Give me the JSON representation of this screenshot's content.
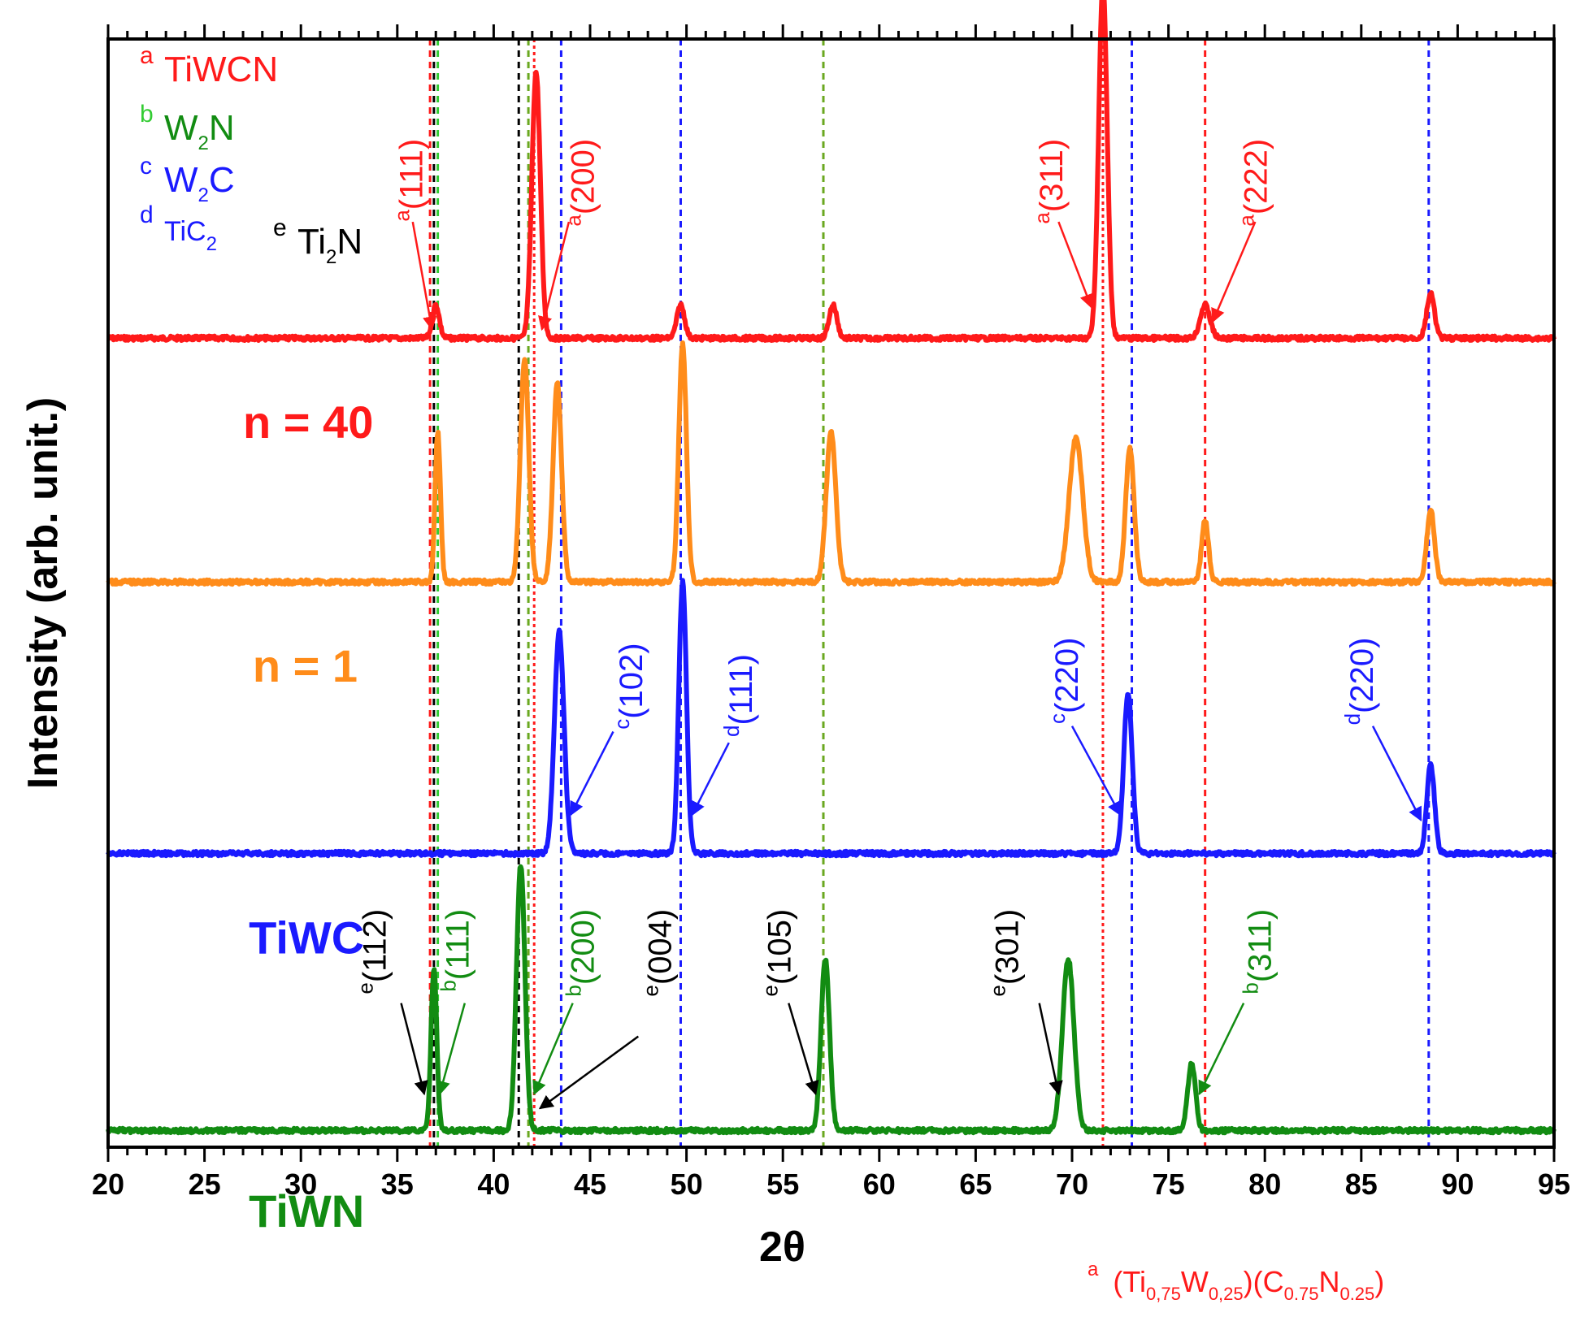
{
  "chart_data": {
    "type": "line",
    "title": "",
    "xlabel": "2θ",
    "ylabel": "Intensity  (arb. unit.)",
    "xlim": [
      20,
      95
    ],
    "xticks": [
      "20",
      "25",
      "30",
      "35",
      "40",
      "45",
      "50",
      "55",
      "60",
      "65",
      "70",
      "75",
      "80",
      "85",
      "90",
      "95"
    ],
    "footnote": {
      "sup": "a",
      "text_parts": [
        "(Ti",
        "0,75",
        "W",
        "0,25",
        ")(C",
        "0.75",
        "N",
        "0.25",
        ")"
      ]
    },
    "legend": [
      {
        "sup": "a",
        "name": "TiWCN",
        "sub": "",
        "color": "#ff1a1a",
        "sup_color": "#ff1a1a"
      },
      {
        "sup": "b",
        "name": "W",
        "sub": "2",
        "name2": "N",
        "color": "#128c12",
        "sup_color": "#33cc33"
      },
      {
        "sup": "c",
        "name": "W",
        "sub": "2",
        "name2": "C",
        "color": "#1a1aff",
        "sup_color": "#1a1aff"
      },
      {
        "sup": "d",
        "name": "TiC",
        "sub": "2",
        "name2": "",
        "color": "#1a1aff",
        "sup_color": "#1a1aff"
      },
      {
        "sup": "e",
        "name": "Ti",
        "sub": "2",
        "name2": "N",
        "color": "#000000",
        "sup_color": "#000000"
      }
    ],
    "reference_lines": [
      {
        "x": 36.7,
        "color": "#ff1a1a",
        "dash": "8,6"
      },
      {
        "x": 36.9,
        "color": "#000000",
        "dash": "8,6"
      },
      {
        "x": 37.1,
        "color": "#33cc33",
        "dash": "8,6"
      },
      {
        "x": 41.3,
        "color": "#000000",
        "dash": "8,6"
      },
      {
        "x": 41.8,
        "color": "#6aa820",
        "dash": "8,6"
      },
      {
        "x": 42.1,
        "color": "#ff1a1a",
        "dash": "4,4"
      },
      {
        "x": 43.5,
        "color": "#1a1aff",
        "dash": "8,6"
      },
      {
        "x": 49.7,
        "color": "#1a1aff",
        "dash": "8,6"
      },
      {
        "x": 57.1,
        "color": "#6aa820",
        "dash": "8,6"
      },
      {
        "x": 71.6,
        "color": "#ff1a1a",
        "dash": "4,4"
      },
      {
        "x": 73.1,
        "color": "#1a1aff",
        "dash": "8,6"
      },
      {
        "x": 76.9,
        "color": "#ff1a1a",
        "dash": "8,6"
      },
      {
        "x": 88.5,
        "color": "#1a1aff",
        "dash": "8,6"
      }
    ],
    "series": [
      {
        "name": "n = 40",
        "color": "#ff1a1a",
        "baseline": 0.27,
        "label_x": 27.0,
        "label_y": 0.36,
        "peaks": [
          {
            "x": 37.0,
            "h": 0.03,
            "w": 0.18
          },
          {
            "x": 42.2,
            "h": 0.24,
            "w": 0.22
          },
          {
            "x": 49.7,
            "h": 0.03,
            "w": 0.2
          },
          {
            "x": 57.6,
            "h": 0.03,
            "w": 0.2
          },
          {
            "x": 71.6,
            "h": 0.32,
            "w": 0.22
          },
          {
            "x": 76.9,
            "h": 0.03,
            "w": 0.25
          },
          {
            "x": 88.6,
            "h": 0.04,
            "w": 0.2
          }
        ]
      },
      {
        "name": "n = 1",
        "color": "#ff8c1a",
        "baseline": 0.49,
        "label_x": 27.5,
        "label_y": 0.58,
        "peaks": [
          {
            "x": 37.1,
            "h": 0.135,
            "w": 0.14
          },
          {
            "x": 41.6,
            "h": 0.2,
            "w": 0.22
          },
          {
            "x": 43.3,
            "h": 0.18,
            "w": 0.22
          },
          {
            "x": 49.8,
            "h": 0.215,
            "w": 0.2
          },
          {
            "x": 57.5,
            "h": 0.135,
            "w": 0.25
          },
          {
            "x": 70.2,
            "h": 0.13,
            "w": 0.35
          },
          {
            "x": 73.0,
            "h": 0.12,
            "w": 0.22
          },
          {
            "x": 76.9,
            "h": 0.055,
            "w": 0.18
          },
          {
            "x": 88.6,
            "h": 0.065,
            "w": 0.2
          }
        ]
      },
      {
        "name": "TiWC",
        "color": "#1a1aff",
        "baseline": 0.735,
        "label_x": 27.3,
        "label_y": 0.825,
        "peaks": [
          {
            "x": 43.4,
            "h": 0.2,
            "w": 0.25
          },
          {
            "x": 49.8,
            "h": 0.245,
            "w": 0.2
          },
          {
            "x": 72.9,
            "h": 0.145,
            "w": 0.22
          },
          {
            "x": 88.6,
            "h": 0.08,
            "w": 0.2
          }
        ]
      },
      {
        "name": "TiWN",
        "color": "#128c12",
        "baseline": 0.985,
        "label_x": 27.3,
        "label_y": 1.072,
        "peaks": [
          {
            "x": 36.9,
            "h": 0.145,
            "w": 0.15
          },
          {
            "x": 41.4,
            "h": 0.24,
            "w": 0.22
          },
          {
            "x": 57.2,
            "h": 0.155,
            "w": 0.22
          },
          {
            "x": 69.8,
            "h": 0.155,
            "w": 0.3
          },
          {
            "x": 76.2,
            "h": 0.06,
            "w": 0.2
          }
        ]
      }
    ],
    "annotations": [
      {
        "sup": "a",
        "label": "(111)",
        "color": "#ff1a1a",
        "tx": 36.3,
        "ty": 0.09,
        "ax1": 35.8,
        "ay1": 0.165,
        "ax2": 36.8,
        "ay2": 0.262
      },
      {
        "sup": "a",
        "label": "(200)",
        "color": "#ff1a1a",
        "tx": 45.2,
        "ty": 0.09,
        "ax1": 43.9,
        "ay1": 0.165,
        "ax2": 42.5,
        "ay2": 0.262
      },
      {
        "sup": "a",
        "label": "(311)",
        "color": "#ff1a1a",
        "tx": 69.5,
        "ty": 0.09,
        "ax1": 69.3,
        "ay1": 0.165,
        "ax2": 71.0,
        "ay2": 0.242
      },
      {
        "sup": "a",
        "label": "(222)",
        "color": "#ff1a1a",
        "tx": 80.1,
        "ty": 0.09,
        "ax1": 79.5,
        "ay1": 0.165,
        "ax2": 77.3,
        "ay2": 0.255
      },
      {
        "sup": "c",
        "label": "(102)",
        "color": "#1a1aff",
        "tx": 47.7,
        "ty": 0.545,
        "ax1": 46.2,
        "ay1": 0.625,
        "ax2": 44.0,
        "ay2": 0.7
      },
      {
        "sup": "d",
        "label": "(111)",
        "color": "#1a1aff",
        "tx": 53.4,
        "ty": 0.555,
        "ax1": 52.2,
        "ay1": 0.635,
        "ax2": 50.3,
        "ay2": 0.7
      },
      {
        "sup": "c",
        "label": "(220)",
        "color": "#1a1aff",
        "tx": 70.3,
        "ty": 0.54,
        "ax1": 70.0,
        "ay1": 0.62,
        "ax2": 72.5,
        "ay2": 0.7
      },
      {
        "sup": "d",
        "label": "(220)",
        "color": "#1a1aff",
        "tx": 85.6,
        "ty": 0.54,
        "ax1": 85.6,
        "ay1": 0.62,
        "ax2": 88.1,
        "ay2": 0.705
      },
      {
        "sup": "e",
        "label": "(112)",
        "color": "#000000",
        "tx": 34.4,
        "ty": 0.785,
        "ax1": 35.2,
        "ay1": 0.87,
        "ax2": 36.4,
        "ay2": 0.952
      },
      {
        "sup": "b",
        "label": "(111)",
        "color": "#128c12",
        "tx": 38.7,
        "ty": 0.785,
        "ax1": 38.5,
        "ay1": 0.87,
        "ax2": 37.2,
        "ay2": 0.952
      },
      {
        "sup": "b",
        "label": "(200)",
        "color": "#128c12",
        "tx": 45.2,
        "ty": 0.785,
        "ax1": 44.1,
        "ay1": 0.87,
        "ax2": 42.1,
        "ay2": 0.952
      },
      {
        "sup": "e",
        "label": "(004)",
        "color": "#000000",
        "tx": 49.2,
        "ty": 0.785,
        "ax1": 47.5,
        "ay1": 0.9,
        "ax2": 42.4,
        "ay2": 0.965
      },
      {
        "sup": "e",
        "label": "(105)",
        "color": "#000000",
        "tx": 55.4,
        "ty": 0.785,
        "ax1": 55.3,
        "ay1": 0.87,
        "ax2": 56.7,
        "ay2": 0.952
      },
      {
        "sup": "e",
        "label": "(301)",
        "color": "#000000",
        "tx": 67.2,
        "ty": 0.785,
        "ax1": 68.3,
        "ay1": 0.87,
        "ax2": 69.3,
        "ay2": 0.952
      },
      {
        "sup": "b",
        "label": "(311)",
        "color": "#128c12",
        "tx": 80.3,
        "ty": 0.785,
        "ax1": 78.9,
        "ay1": 0.87,
        "ax2": 76.6,
        "ay2": 0.952
      }
    ]
  }
}
